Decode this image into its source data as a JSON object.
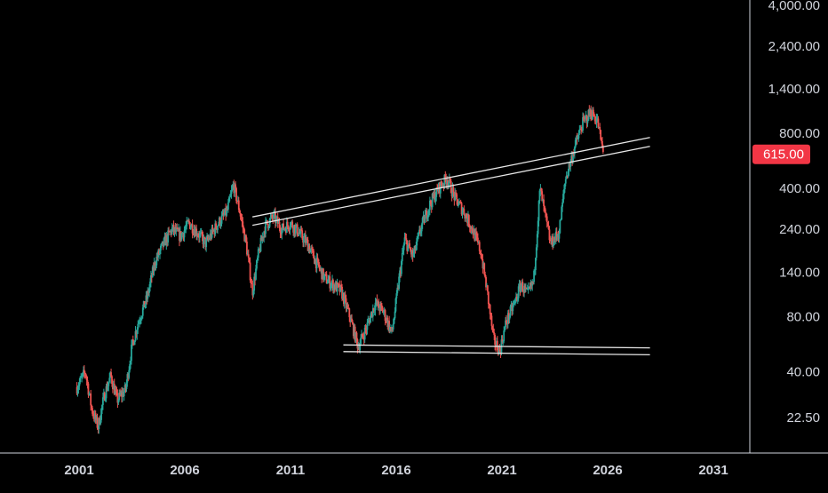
{
  "chart_data": {
    "type": "candlestick",
    "scale": "log",
    "grid": false,
    "colors": {
      "background": "#000000",
      "up": "#26a69a",
      "down": "#ef5350",
      "text": "#d1d4dc",
      "axis_line": "#d1d4dc",
      "price_badge": "#f23645",
      "trendline": "#e6e6e6"
    },
    "y_ticks": [
      {
        "value": 4000,
        "label": "4,000.00"
      },
      {
        "value": 2400,
        "label": "2,400.00"
      },
      {
        "value": 1400,
        "label": "1,400.00"
      },
      {
        "value": 800,
        "label": "800.00"
      },
      {
        "value": 400,
        "label": "400.00"
      },
      {
        "value": 240,
        "label": "240.00"
      },
      {
        "value": 140,
        "label": "140.00"
      },
      {
        "value": 80,
        "label": "80.00"
      },
      {
        "value": 40,
        "label": "40.00"
      },
      {
        "value": 22.5,
        "label": "22.50"
      }
    ],
    "x_ticks": [
      {
        "value": 2001,
        "label": "2001"
      },
      {
        "value": 2006,
        "label": "2006"
      },
      {
        "value": 2011,
        "label": "2011"
      },
      {
        "value": 2016,
        "label": "2016"
      },
      {
        "value": 2021,
        "label": "2021"
      },
      {
        "value": 2026,
        "label": "2026"
      },
      {
        "value": 2031,
        "label": "2031"
      }
    ],
    "last_price": {
      "value": 615,
      "label": "615.00"
    },
    "price_path": [
      [
        2000.9,
        33
      ],
      [
        2001.3,
        40
      ],
      [
        2001.6,
        25
      ],
      [
        2001.9,
        20
      ],
      [
        2002.2,
        30
      ],
      [
        2002.5,
        38
      ],
      [
        2002.8,
        28
      ],
      [
        2003.2,
        32
      ],
      [
        2003.5,
        55
      ],
      [
        2003.8,
        75
      ],
      [
        2004.2,
        100
      ],
      [
        2004.6,
        160
      ],
      [
        2005.0,
        200
      ],
      [
        2005.4,
        240
      ],
      [
        2005.8,
        220
      ],
      [
        2006.2,
        260
      ],
      [
        2006.6,
        230
      ],
      [
        2007.0,
        200
      ],
      [
        2007.3,
        230
      ],
      [
        2007.6,
        260
      ],
      [
        2008.0,
        300
      ],
      [
        2008.3,
        420
      ],
      [
        2008.6,
        300
      ],
      [
        2008.9,
        200
      ],
      [
        2009.2,
        110
      ],
      [
        2009.5,
        180
      ],
      [
        2009.8,
        250
      ],
      [
        2010.2,
        280
      ],
      [
        2010.6,
        240
      ],
      [
        2011.0,
        260
      ],
      [
        2011.4,
        230
      ],
      [
        2011.8,
        200
      ],
      [
        2012.2,
        160
      ],
      [
        2012.6,
        130
      ],
      [
        2013.0,
        120
      ],
      [
        2013.4,
        110
      ],
      [
        2013.8,
        80
      ],
      [
        2014.2,
        55
      ],
      [
        2014.6,
        70
      ],
      [
        2015.0,
        95
      ],
      [
        2015.4,
        85
      ],
      [
        2015.8,
        65
      ],
      [
        2016.1,
        120
      ],
      [
        2016.4,
        210
      ],
      [
        2016.8,
        170
      ],
      [
        2017.2,
        250
      ],
      [
        2017.6,
        330
      ],
      [
        2018.0,
        400
      ],
      [
        2018.4,
        460
      ],
      [
        2018.8,
        350
      ],
      [
        2019.2,
        300
      ],
      [
        2019.6,
        240
      ],
      [
        2020.0,
        180
      ],
      [
        2020.3,
        110
      ],
      [
        2020.6,
        60
      ],
      [
        2020.9,
        52
      ],
      [
        2021.2,
        75
      ],
      [
        2021.6,
        95
      ],
      [
        2021.9,
        120
      ],
      [
        2022.2,
        105
      ],
      [
        2022.5,
        125
      ],
      [
        2022.8,
        400
      ],
      [
        2023.0,
        300
      ],
      [
        2023.3,
        200
      ],
      [
        2023.7,
        230
      ],
      [
        2024.0,
        450
      ],
      [
        2024.4,
        650
      ],
      [
        2024.8,
        900
      ],
      [
        2025.2,
        1050
      ],
      [
        2025.5,
        950
      ],
      [
        2025.8,
        615
      ]
    ],
    "trendlines": [
      {
        "from": [
          2009.2,
          280
        ],
        "to": [
          2028.0,
          760
        ]
      },
      {
        "from": [
          2009.2,
          252
        ],
        "to": [
          2028.0,
          680
        ]
      },
      {
        "from": [
          2013.5,
          56
        ],
        "to": [
          2028.0,
          54
        ]
      },
      {
        "from": [
          2013.5,
          51.5
        ],
        "to": [
          2028.0,
          49.5
        ]
      }
    ]
  }
}
